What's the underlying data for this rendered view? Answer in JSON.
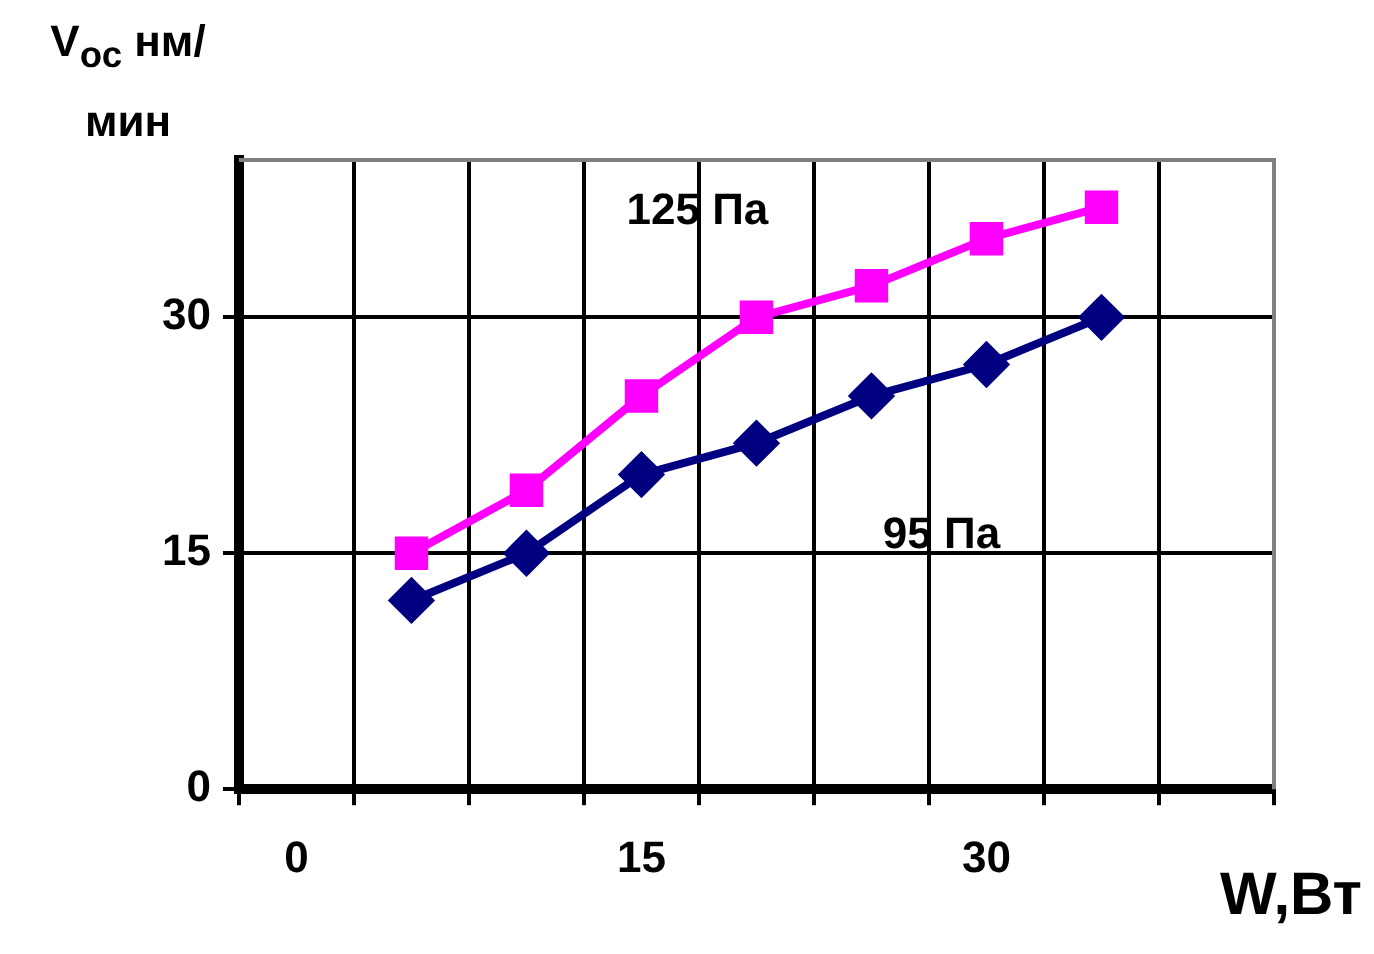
{
  "chart_data": {
    "type": "line",
    "ylabel": "V$_{ос}$ нм/мин",
    "xlabel": "W,Вт",
    "categories": [
      "0",
      null,
      null,
      "15",
      null,
      null,
      "30",
      null,
      null
    ],
    "series": [
      {
        "name": "125 Па",
        "color": "#ff00ff",
        "marker": "square",
        "values": [
          null,
          15,
          19,
          25,
          30,
          32,
          35,
          37,
          null
        ]
      },
      {
        "name": "95 Па",
        "color": "#000080",
        "marker": "diamond",
        "values": [
          null,
          12,
          15,
          20,
          22,
          25,
          27,
          30,
          null
        ]
      }
    ],
    "ylim": [
      0,
      40
    ],
    "yticks": [
      0,
      15,
      30
    ],
    "grid": true,
    "legend": false
  }
}
